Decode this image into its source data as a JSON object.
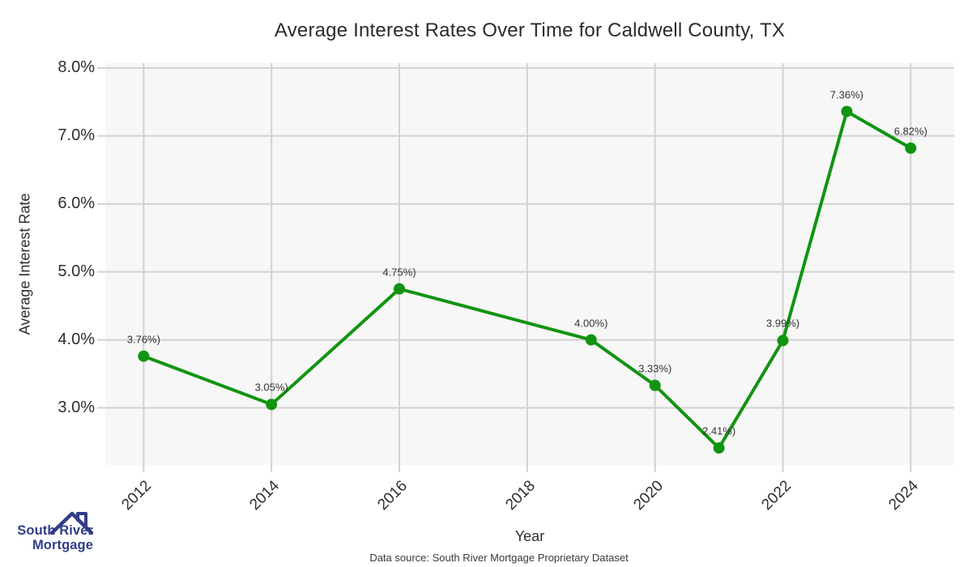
{
  "title": "Average Interest Rates Over Time for Caldwell County, TX",
  "branding": {
    "logo_line1": "South River",
    "logo_line2": "Mortgage",
    "logo_color": "#313d87"
  },
  "footer": {
    "text": "Data source: South River Mortgage Proprietary Dataset"
  },
  "chart_data": {
    "type": "line",
    "title": "Average Interest Rates Over Time for Caldwell County, TX",
    "xlabel": "Year",
    "ylabel": "Average Interest Rate",
    "x": [
      2012,
      2014,
      2016,
      2019,
      2020,
      2021,
      2022,
      2023,
      2024
    ],
    "values": [
      3.76,
      3.05,
      4.75,
      4.0,
      3.33,
      2.41,
      3.99,
      7.36,
      6.82
    ],
    "point_labels": [
      "3.76%)",
      "3.05%)",
      "4.75%)",
      "4.00%)",
      "3.33%)",
      "2.41%)",
      "3.99%)",
      "7.36%)",
      "6.82%)"
    ],
    "x_ticks": [
      2012,
      2014,
      2016,
      2018,
      2020,
      2022,
      2024
    ],
    "x_tick_labels": [
      "2012",
      "2014",
      "2016",
      "2018",
      "2020",
      "2022",
      "2024"
    ],
    "y_ticks": [
      3,
      4,
      5,
      6,
      7,
      8
    ],
    "y_tick_labels": [
      "3.0%",
      "4.0%",
      "5.0%",
      "6.0%",
      "7.0%",
      "8.0%"
    ],
    "xlim": [
      2011.4,
      2024.68
    ],
    "ylim": [
      2.16,
      8.07
    ],
    "grid": true,
    "legend": false,
    "line_color": "#119411",
    "marker_color": "#119411",
    "plot_bg": "#f7f7f7",
    "grid_color": "#d2d2d2"
  }
}
